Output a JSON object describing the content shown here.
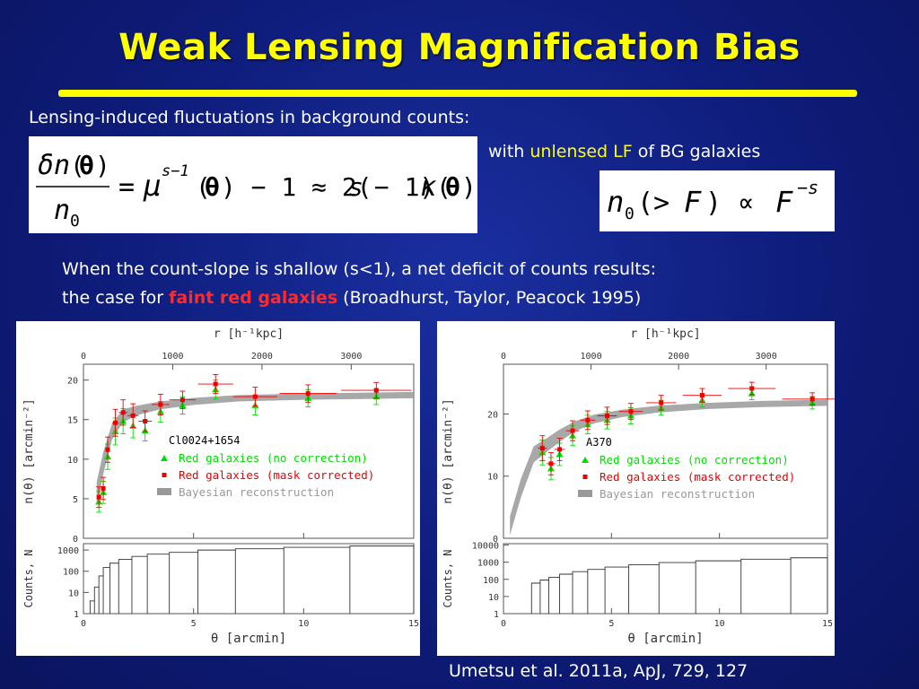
{
  "slide": {
    "title": "Weak Lensing Magnification Bias",
    "intro": "Lensing-induced fluctuations in background counts:",
    "with_prefix": "with ",
    "with_highlight": "unlensed LF",
    "with_suffix": " of BG galaxies",
    "para_line1": "When the count-slope is shallow (s<1), a net deficit of counts results:",
    "para_line2_prefix": "the case for ",
    "para_line2_highlight": "faint red galaxies",
    "para_line2_suffix": " (Broadhurst, Taylor, Peacock 1995)",
    "citation": "Umetsu et al. 2011a, ApJ, 729, 127"
  },
  "colors": {
    "title": "#ffff00",
    "highlight": "#ffff00",
    "red_text": "#ff2a2a",
    "green_series": "#00dd00",
    "red_series": "#ee0000",
    "band": "#999999"
  },
  "equations": {
    "eq1": {
      "num_delta": "δ",
      "num_n": "n",
      "num_open": "(",
      "num_theta": "θ",
      "num_close": ")",
      "den_n": "n",
      "den_sub": "0",
      "rhs_eq": "=",
      "rhs_mu": "μ",
      "rhs_sup": "s−1",
      "rhs_rest1": "(",
      "rhs_theta1": "θ",
      "rhs_rest2": ") − 1 ≈ 2(",
      "rhs_s": "s",
      "rhs_rest3": " − 1)",
      "rhs_kappa": "κ",
      "rhs_rest4": "(",
      "rhs_theta2": "θ",
      "rhs_rest5": ")"
    },
    "eq2": {
      "n": "n",
      "sub": "0",
      "mid": "(> ",
      "F1": "F",
      "prop": ") ∝ ",
      "F2": "F",
      "sup": "−s"
    }
  },
  "chart_data": [
    {
      "type": "scatter",
      "cluster_label": "Cl0024+1654",
      "top_axis_label": "r [h⁻¹kpc]",
      "top_ticks": [
        0,
        1000,
        2000,
        3000
      ],
      "top_max": 3700,
      "xlabel": "θ [arcmin]",
      "xlim": [
        0,
        15
      ],
      "x_ticks": [
        0,
        5,
        10,
        15
      ],
      "ylabel_top": "n(θ) [arcmin⁻²]",
      "ylim_top": [
        0,
        22
      ],
      "y_ticks_top": [
        0,
        5,
        10,
        15,
        20
      ],
      "ylabel_bottom": "Counts, N",
      "ylim_bottom": [
        1,
        2000
      ],
      "y_ticks_bottom": [
        1,
        10,
        100,
        1000
      ],
      "legend": [
        "Red galaxies (no correction)",
        "Red galaxies (mask corrected)",
        "Bayesian reconstruction"
      ],
      "series": [
        {
          "name": "Red galaxies (no correction)",
          "marker": "triangle",
          "x": [
            0.7,
            0.9,
            1.1,
            1.45,
            1.8,
            2.25,
            2.8,
            3.5,
            4.5,
            6.0,
            7.8,
            10.2,
            13.3
          ],
          "y": [
            4.6,
            5.8,
            10.3,
            13.5,
            14.8,
            14.2,
            13.6,
            16.0,
            16.8,
            18.8,
            16.8,
            17.7,
            17.9
          ],
          "yerr": [
            1.3,
            1.4,
            1.6,
            1.7,
            1.6,
            1.5,
            1.3,
            1.3,
            1.1,
            1.2,
            1.2,
            1.1,
            1.0
          ]
        },
        {
          "name": "Red galaxies (mask corrected)",
          "marker": "square",
          "x": [
            0.7,
            0.9,
            1.1,
            1.45,
            1.8,
            2.25,
            2.8,
            3.5,
            4.5,
            6.0,
            7.8,
            10.2,
            13.3
          ],
          "y": [
            5.2,
            6.3,
            11.2,
            14.6,
            15.9,
            15.5,
            14.8,
            16.9,
            17.5,
            19.5,
            17.9,
            18.3,
            18.7
          ],
          "yerr": [
            1.3,
            1.4,
            1.6,
            1.7,
            1.6,
            1.5,
            1.3,
            1.3,
            1.1,
            1.2,
            1.2,
            1.1,
            1.0
          ],
          "xerr": [
            0.1,
            0.1,
            0.1,
            0.15,
            0.2,
            0.25,
            0.3,
            0.4,
            0.6,
            0.8,
            1.0,
            1.3,
            1.6
          ]
        },
        {
          "name": "Bayesian reconstruction",
          "type": "band",
          "x": [
            0.6,
            0.9,
            1.3,
            1.8,
            2.5,
            3.5,
            5,
            7,
            10,
            15
          ],
          "y": [
            5.5,
            9.5,
            13.5,
            15.5,
            16.2,
            16.8,
            17.3,
            17.7,
            17.9,
            18.1
          ],
          "halfwidth": [
            1.6,
            1.4,
            1.0,
            0.8,
            0.6,
            0.5,
            0.45,
            0.4,
            0.4,
            0.4
          ]
        }
      ],
      "histogram": {
        "edges": [
          0.3,
          0.5,
          0.7,
          0.9,
          1.2,
          1.6,
          2.2,
          2.9,
          3.9,
          5.2,
          6.9,
          9.1,
          12.1,
          15.0
        ],
        "counts": [
          4,
          18,
          60,
          150,
          240,
          360,
          500,
          640,
          780,
          1000,
          1150,
          1350,
          1550
        ]
      }
    },
    {
      "type": "scatter",
      "cluster_label": "A370",
      "top_axis_label": "r [h⁻¹kpc]",
      "top_ticks": [
        0,
        1000,
        2000,
        3000
      ],
      "top_max": 3700,
      "xlabel": "θ [arcmin]",
      "xlim": [
        0,
        15
      ],
      "x_ticks": [
        0,
        5,
        10,
        15
      ],
      "ylabel_top": "n(θ) [arcmin⁻²]",
      "ylim_top": [
        0,
        28
      ],
      "y_ticks_top": [
        0,
        10,
        20
      ],
      "ylabel_bottom": "Counts, N",
      "ylim_bottom": [
        1,
        12000
      ],
      "y_ticks_bottom": [
        1,
        10,
        100,
        1000,
        10000
      ],
      "legend": [
        "Red galaxies (no correction)",
        "Red galaxies (mask corrected)",
        "Bayesian reconstruction"
      ],
      "series": [
        {
          "name": "Red galaxies (no correction)",
          "marker": "triangle",
          "x": [
            1.8,
            2.2,
            2.6,
            3.2,
            3.9,
            4.8,
            5.9,
            7.3,
            9.2,
            11.5,
            14.3
          ],
          "y": [
            13.8,
            11.2,
            13.5,
            16.5,
            18.3,
            19.0,
            19.7,
            21.0,
            22.2,
            23.3,
            21.8
          ],
          "yerr": [
            2.0,
            1.8,
            1.8,
            1.6,
            1.5,
            1.4,
            1.3,
            1.2,
            1.1,
            1.0,
            1.0
          ]
        },
        {
          "name": "Red galaxies (mask corrected)",
          "marker": "square",
          "x": [
            1.8,
            2.2,
            2.6,
            3.2,
            3.9,
            4.8,
            5.9,
            7.3,
            9.2,
            11.5,
            14.3
          ],
          "y": [
            14.5,
            12.0,
            14.3,
            17.3,
            19.0,
            19.7,
            20.4,
            21.8,
            23.0,
            24.1,
            22.4
          ],
          "yerr": [
            2.0,
            1.8,
            1.8,
            1.6,
            1.5,
            1.4,
            1.3,
            1.2,
            1.1,
            1.0,
            1.0
          ],
          "xerr": [
            0.2,
            0.2,
            0.25,
            0.3,
            0.35,
            0.45,
            0.55,
            0.7,
            0.9,
            1.1,
            1.4
          ]
        },
        {
          "name": "Bayesian reconstruction",
          "type": "band",
          "x": [
            0.3,
            0.8,
            1.4,
            2.0,
            2.6,
            3.3,
            4.2,
            5.5,
            7.2,
            9.5,
            12,
            15
          ],
          "y": [
            2.0,
            8.0,
            13.5,
            15.0,
            16.5,
            18.0,
            19.2,
            20.1,
            20.8,
            21.3,
            21.6,
            21.8
          ],
          "halfwidth": [
            1.5,
            1.5,
            1.3,
            1.1,
            1.0,
            0.8,
            0.7,
            0.6,
            0.55,
            0.5,
            0.5,
            0.5
          ]
        }
      ],
      "histogram": {
        "edges": [
          1.3,
          1.7,
          2.1,
          2.6,
          3.2,
          3.9,
          4.7,
          5.8,
          7.2,
          8.9,
          11.0,
          13.3,
          15.0
        ],
        "counts": [
          60,
          90,
          130,
          200,
          280,
          380,
          520,
          700,
          950,
          1200,
          1500,
          1800
        ]
      }
    }
  ]
}
